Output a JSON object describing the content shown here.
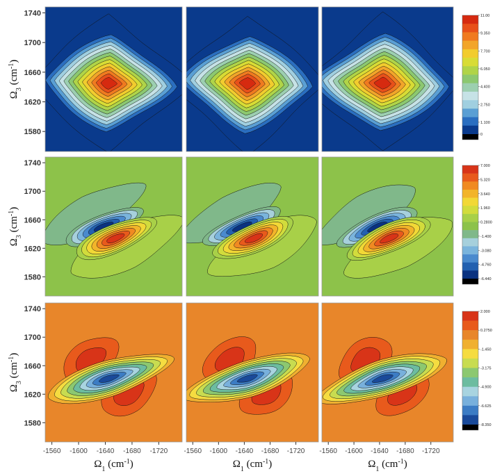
{
  "chart_data": {
    "type": "contour",
    "xlabel": [
      "Ω",
      "1",
      " (cm",
      "-1",
      ")"
    ],
    "ylabel": [
      "Ω",
      "3",
      " (cm",
      "-1",
      ")"
    ],
    "xlim": [
      -1550,
      -1755
    ],
    "ylim": [
      1553,
      1748
    ],
    "xticks": [
      -1560,
      -1600,
      -1640,
      -1680,
      -1720
    ],
    "yticks": [
      1580,
      1620,
      1660,
      1700,
      1740
    ],
    "rows": [
      {
        "colorbar": {
          "clim": [
            0,
            11
          ],
          "ticks": [
            {
              "value": 11,
              "label": "11.00"
            },
            {
              "value": 9.35,
              "label": "9.350"
            },
            {
              "value": 7.7,
              "label": "7.700"
            },
            {
              "value": 6.05,
              "label": "6.050"
            },
            {
              "value": 4.4,
              "label": "4.400"
            },
            {
              "value": 2.75,
              "label": "2.750"
            },
            {
              "value": 1.1,
              "label": "1.100"
            },
            0
          ],
          "colors": [
            "#d62a10",
            "#e8501a",
            "#f07a20",
            "#f2a52a",
            "#f2cc2e",
            "#d8dc35",
            "#b0d448",
            "#8cc870",
            "#9ccfb0",
            "#c6e2e6",
            "#a0cfe0",
            "#5a9fd4",
            "#2a6ec0",
            "#0a3a8c"
          ]
        }
      },
      {
        "colorbar": {
          "clim": [
            -6.44,
            7
          ],
          "ticks": [
            {
              "value": 7,
              "label": "7.000"
            },
            {
              "value": 5.32,
              "label": "5.320"
            },
            {
              "value": 3.64,
              "label": "3.640"
            },
            {
              "value": 1.96,
              "label": "1.960"
            },
            {
              "value": 0.28,
              "label": "0.2800"
            },
            {
              "value": -1.4,
              "label": "-1.400"
            },
            {
              "value": -3.08,
              "label": "-3.080"
            },
            {
              "value": -4.76,
              "label": "-4.760"
            },
            {
              "value": -6.44,
              "label": "-6.440"
            }
          ],
          "colors": [
            "#d83418",
            "#e85a1c",
            "#f08a22",
            "#f2b42a",
            "#f2d836",
            "#d2dc3c",
            "#a8d048",
            "#8dc24a",
            "#80b88a",
            "#a6d0dc",
            "#7ab4dc",
            "#4a8ace",
            "#2260b0",
            "#0a3280"
          ]
        }
      },
      {
        "colorbar": {
          "clim": [
            -8.35,
            2
          ],
          "ticks": [
            {
              "value": 2,
              "label": "2.000"
            },
            {
              "value": 0.275,
              "label": "0.2750"
            },
            {
              "value": -1.45,
              "label": "-1.450"
            },
            {
              "value": -3.175,
              "label": "-3.175"
            },
            {
              "value": -4.9,
              "label": "-4.900"
            },
            {
              "value": -6.625,
              "label": "-6.625"
            },
            {
              "value": -8.35,
              "label": "-8.350"
            }
          ],
          "colors": [
            "#d83418",
            "#e85a1c",
            "#e8862a",
            "#f0b030",
            "#f5dc40",
            "#c8dc50",
            "#8cc870",
            "#6cbca0",
            "#a8d4e0",
            "#78b0dc",
            "#3c7cc4",
            "#1a4a9a"
          ]
        }
      }
    ]
  }
}
